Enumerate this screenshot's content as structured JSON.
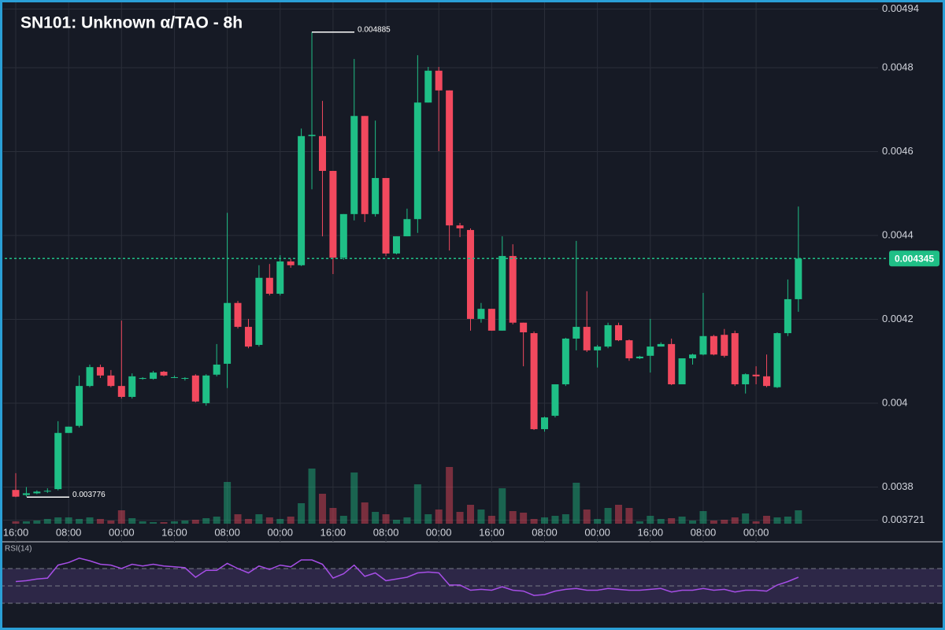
{
  "chart_data": {
    "type": "candlestick",
    "title": "SN101: Unknown α/TAO - 8h",
    "categories": [
      "16:00",
      null,
      null,
      null,
      null,
      "08:00",
      null,
      null,
      null,
      null,
      "00:00",
      null,
      null,
      null,
      null,
      "16:00",
      null,
      null,
      null,
      null,
      "08:00",
      null,
      null,
      null,
      null,
      "00:00",
      null,
      null,
      null,
      null,
      "16:00",
      null,
      null,
      null,
      null,
      "08:00",
      null,
      null,
      null,
      null,
      "00:00",
      null,
      null,
      null,
      null,
      "16:00",
      null,
      null,
      null,
      null,
      "08:00",
      null,
      null,
      null,
      null,
      "00:00",
      null,
      null,
      null,
      null,
      "16:00",
      null,
      null,
      null,
      null,
      "08:00",
      null,
      null,
      null,
      null,
      "00:00",
      null,
      null,
      null,
      null
    ],
    "open": [
      0.003793,
      0.003781,
      0.003785,
      0.003791,
      0.003795,
      0.003929,
      0.003946,
      0.004041,
      0.004086,
      0.004066,
      0.004041,
      0.004015,
      0.004058,
      0.004058,
      0.004075,
      0.004062,
      0.00406,
      0.004066,
      0.004,
      0.004068,
      0.004094,
      0.004239,
      0.004182,
      0.004139,
      0.004299,
      0.004261,
      0.004338,
      0.004329,
      0.004637,
      0.004637,
      0.004554,
      0.004347,
      0.004451,
      0.004685,
      0.004451,
      0.004537,
      0.004357,
      0.004398,
      0.004439,
      0.004717,
      0.004793,
      0.004746,
      0.004424,
      0.004413,
      0.004201,
      0.004225,
      0.004173,
      0.004351,
      0.004192,
      0.004167,
      0.003938,
      0.00397,
      0.004045,
      0.004154,
      0.004182,
      0.004126,
      0.004135,
      0.004186,
      0.00415,
      0.004107,
      0.004113,
      0.004135,
      0.004141,
      0.004045,
      0.004107,
      0.004116,
      0.00416,
      0.004163,
      0.004167,
      0.004045,
      0.004068,
      0.004064,
      0.004038,
      0.004167,
      0.004248
    ],
    "high": [
      0.003833,
      0.0038,
      0.003792,
      0.003797,
      0.003957,
      0.003944,
      0.004066,
      0.004092,
      0.004092,
      0.004079,
      0.004197,
      0.004071,
      0.004062,
      0.004077,
      0.004077,
      0.004066,
      0.004062,
      0.004069,
      0.004069,
      0.004141,
      0.004454,
      0.004244,
      0.004201,
      0.004329,
      0.004332,
      0.004353,
      0.004344,
      0.004655,
      0.004885,
      0.004721,
      0.004554,
      0.004451,
      0.004821,
      0.004685,
      0.004674,
      0.004537,
      0.004398,
      0.004464,
      0.00483,
      0.004802,
      0.004802,
      0.004746,
      0.00443,
      0.004417,
      0.004239,
      0.004225,
      0.004398,
      0.004379,
      0.004192,
      0.004171,
      0.003968,
      0.004045,
      0.004156,
      0.004387,
      0.004267,
      0.004139,
      0.004192,
      0.004192,
      0.004152,
      0.004113,
      0.004201,
      0.004145,
      0.004154,
      0.004107,
      0.004118,
      0.004263,
      0.004163,
      0.004177,
      0.004173,
      0.004071,
      0.004088,
      0.004116,
      0.004169,
      0.004295,
      0.004469
    ],
    "low": [
      0.003776,
      0.003777,
      0.003783,
      0.003786,
      0.003792,
      0.003929,
      0.003942,
      0.004038,
      0.00406,
      0.004038,
      0.004011,
      0.004011,
      0.004056,
      0.004056,
      0.004064,
      0.00406,
      0.004054,
      0.004002,
      0.003994,
      0.004064,
      0.004036,
      0.004178,
      0.004131,
      0.004135,
      0.004257,
      0.004257,
      0.004323,
      0.004327,
      0.00451,
      0.004398,
      0.004308,
      0.004342,
      0.004436,
      0.004432,
      0.004445,
      0.004351,
      0.004355,
      0.004398,
      0.004406,
      0.004717,
      0.004601,
      0.004364,
      0.004396,
      0.004173,
      0.004192,
      0.004173,
      0.004173,
      0.004188,
      0.004088,
      0.003936,
      0.003932,
      0.003966,
      0.004041,
      0.004126,
      0.004122,
      0.004085,
      0.004131,
      0.004148,
      0.004101,
      0.004105,
      0.004073,
      0.004135,
      0.004043,
      0.004045,
      0.004092,
      0.004114,
      0.004114,
      0.004109,
      0.004041,
      0.004023,
      0.004045,
      0.004038,
      0.004036,
      0.00416,
      0.004218
    ],
    "close": [
      0.003777,
      0.003785,
      0.003789,
      0.003791,
      0.003929,
      0.003944,
      0.004041,
      0.004086,
      0.004066,
      0.004041,
      0.004015,
      0.004064,
      0.00406,
      0.004073,
      0.004066,
      0.004062,
      0.00406,
      0.004004,
      0.004066,
      0.004092,
      0.004239,
      0.004182,
      0.004135,
      0.004299,
      0.004261,
      0.004338,
      0.004329,
      0.004637,
      0.00464,
      0.004554,
      0.004347,
      0.004451,
      0.004685,
      0.004451,
      0.004537,
      0.004357,
      0.004398,
      0.004439,
      0.004717,
      0.004793,
      0.004746,
      0.004424,
      0.004417,
      0.004201,
      0.004225,
      0.004173,
      0.004351,
      0.004192,
      0.004169,
      0.003938,
      0.003966,
      0.004045,
      0.004154,
      0.004182,
      0.004126,
      0.004135,
      0.004186,
      0.00415,
      0.004107,
      0.004111,
      0.004135,
      0.004141,
      0.004045,
      0.004107,
      0.004116,
      0.00416,
      0.004116,
      0.004113,
      0.004045,
      0.004069,
      0.004064,
      0.004041,
      0.004167,
      0.004248,
      0.004345
    ],
    "volume": [
      3,
      3,
      4,
      6,
      8,
      8,
      6,
      8,
      6,
      4,
      17,
      7,
      3,
      2,
      2,
      3,
      4,
      5,
      7,
      9,
      53,
      12,
      6,
      12,
      8,
      6,
      9,
      26,
      70,
      38,
      20,
      10,
      65,
      27,
      15,
      12,
      5,
      8,
      50,
      12,
      18,
      72,
      15,
      24,
      18,
      10,
      45,
      16,
      14,
      6,
      8,
      10,
      12,
      52,
      18,
      6,
      20,
      24,
      20,
      3,
      10,
      6,
      7,
      9,
      4,
      16,
      4,
      5,
      8,
      13,
      3,
      10,
      8,
      9,
      17
    ],
    "up_color": "#1fbf86",
    "down_color": "#f2495e",
    "ylim": [
      0.003721,
      0.00494
    ],
    "yticks": [
      0.003721,
      0.0038,
      0.004,
      0.0042,
      0.0044,
      0.0046,
      0.0048,
      0.00494
    ],
    "grid": true,
    "rsi": {
      "label": "RSI(14)",
      "color": "#a64ee6",
      "ylim": [
        0,
        100
      ],
      "levels": [
        30,
        50,
        70
      ],
      "values": [
        55,
        56,
        58,
        59,
        74,
        77,
        82,
        79,
        75,
        74,
        70,
        75,
        73,
        75,
        73,
        72,
        71,
        60,
        68,
        68,
        76,
        70,
        65,
        73,
        69,
        74,
        72,
        80,
        80,
        75,
        59,
        64,
        74,
        61,
        65,
        56,
        58,
        60,
        65,
        66,
        65,
        51,
        51,
        45,
        46,
        45,
        49,
        45,
        44,
        39,
        40,
        44,
        46,
        47,
        45,
        45,
        47,
        46,
        45,
        45,
        46,
        47,
        43,
        45,
        45,
        47,
        45,
        46,
        43,
        45,
        45,
        44,
        51,
        55,
        60
      ]
    }
  }
}
